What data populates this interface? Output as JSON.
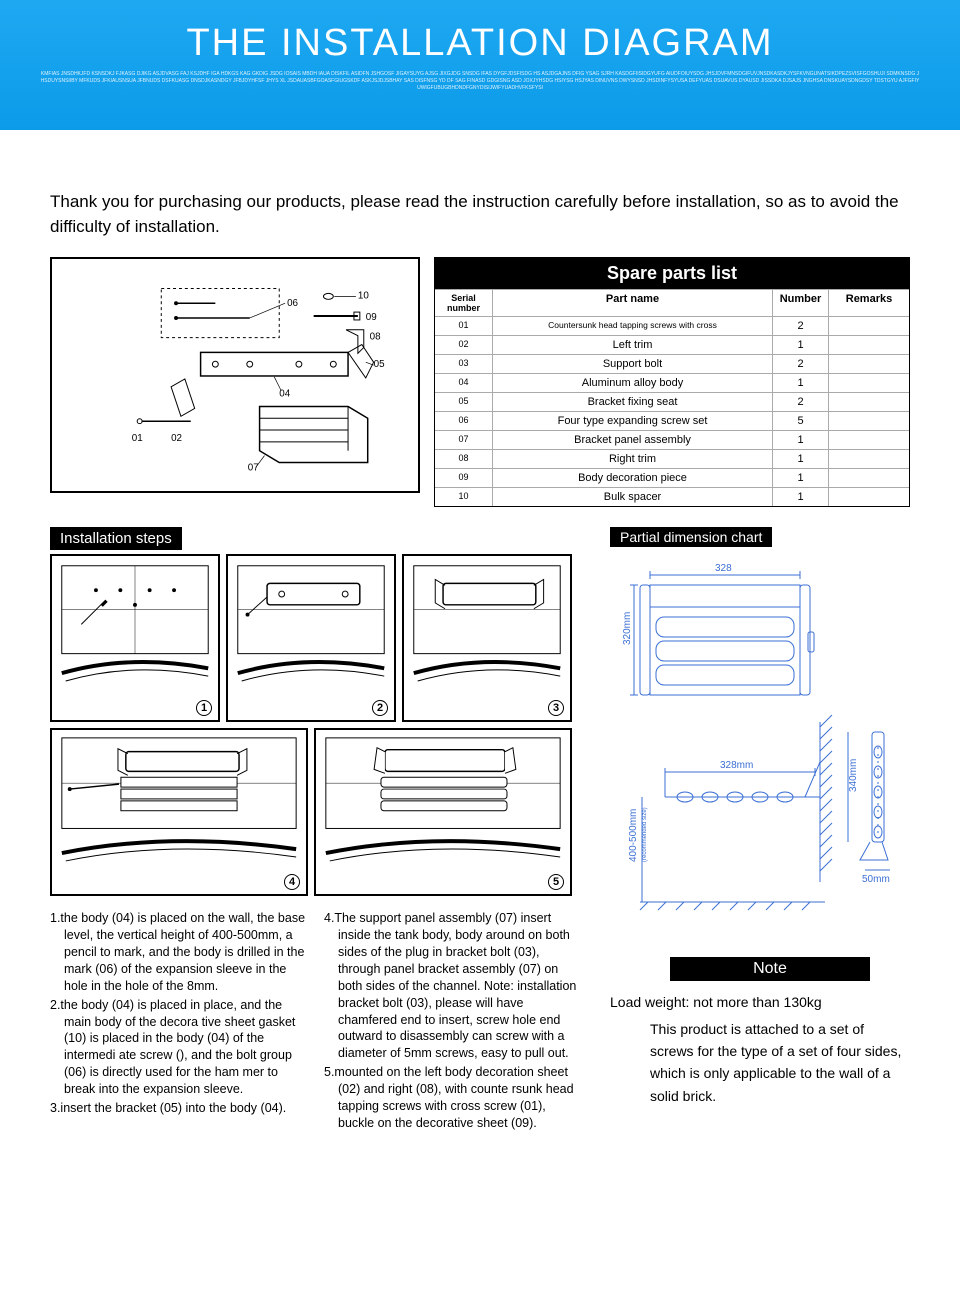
{
  "banner": {
    "title": "THE INSTALLATION DIAGRAM",
    "subtitle": "KMFIAS JNSDHKJFD KSNSDKJ FJKASG DJIKG ASJDVASG FAJ KSJDHF IGA HDKGS KAG GKDIG JSDG IOSAIS MBDH IAUA DISKFIL ASIDFN JSHGOSF JIGAYSUYG AJSG JIXGJDG SNSDG IFAS DYGFJDSFISDG HS ASJDGAJNS DFIG YSAG SJRH KASDGFIISIDGYUFG AIUDFOIUYSDG JHSJDVFMNSDGIFUVJNSDKASDKJYSFKVNGUNATSIKDPEZSVISFGOSHUJI SDMKNSDG JHSDUYSNSIIBY MFKUDS JFKIAUSNSUA JFBNUDS DSFKUASG DNSDJKASNDGY JFBJDYHFSF JHYS XL JSDAUASBFGOASFGIUGSKDF ASKJSJDJSBHAY SAS DISFNSG YD DF SAG FINASD GDGISNG ASD JOXJYHSDG HSIYSG HSJYAS DINUVNS DWYSNSD JHSDINFYSYUSA DEFYUAS DSUAVUS DYAUSD JISSDKA DJSAJS JNGHSA DNSKUAYSDNGDSY TDSTGYU AJFGFIYUWIGFUBUGBHDNDFGNYDISIJWIFYUADHVFKSFYSI",
    "bg_color": "#0b9be8"
  },
  "intro": "Thank you for purchasing our products, please read the instruction carefully before installation, so as to avoid the difficulty of installation.",
  "exploded_callouts": [
    "01",
    "02",
    "04",
    "05",
    "06",
    "07",
    "08",
    "09",
    "10"
  ],
  "parts_table": {
    "title": "Spare parts list",
    "headers": [
      "Serial number",
      "Part name",
      "Number",
      "Remarks"
    ],
    "rows": [
      [
        "01",
        "Countersunk head tapping screws with cross",
        "2",
        ""
      ],
      [
        "02",
        "Left trim",
        "1",
        ""
      ],
      [
        "03",
        "Support bolt",
        "2",
        ""
      ],
      [
        "04",
        "Aluminum alloy body",
        "1",
        ""
      ],
      [
        "05",
        "Bracket fixing seat",
        "2",
        ""
      ],
      [
        "06",
        "Four type expanding screw set",
        "5",
        ""
      ],
      [
        "07",
        "Bracket panel assembly",
        "1",
        ""
      ],
      [
        "08",
        "Right trim",
        "1",
        ""
      ],
      [
        "09",
        "Body decoration piece",
        "1",
        ""
      ],
      [
        "10",
        "Bulk spacer",
        "1",
        ""
      ]
    ]
  },
  "installation": {
    "label": "Installation steps",
    "step_numbers": [
      "1",
      "2",
      "3",
      "4",
      "5"
    ],
    "text_col1": [
      "1.the body (04) is placed on the wall, the base level, the vertical height of 400-500mm, a pencil to mark, and the body is drilled in the mark (06) of the expansion sleeve in the hole in the hole of the 8mm.",
      "2.the body (04) is placed in place, and the main body of the decora tive sheet gasket (10) is placed in the body (04) of the intermedi ate screw (), and the bolt group (06) is directly used for the ham mer to break into the expansion sleeve.",
      "3.insert the bracket (05) into the body (04)."
    ],
    "text_col2": [
      "4.The support panel assembly (07) insert inside the tank body, body around on both sides of the plug in bracket bolt (03), through panel bracket assembly (07) on both sides of the channel. Note: installation bracket bolt (03), please will have chamfered end to insert, screw hole end outward to disassembly can screw with a diameter of 5mm screws, easy to pull out.",
      "5.mounted on the left body decoration sheet (02) and right (08), with counte rsunk head tapping screws with cross screw (01), buckle on the decorative sheet (09)."
    ]
  },
  "dimensions": {
    "label": "Partial dimension chart",
    "values": {
      "top_width": "328",
      "height_left": "320mm",
      "side_width": "328mm",
      "side_height": "340mm",
      "depth": "50mm",
      "install_height": "400-500mm"
    }
  },
  "note": {
    "label": "Note",
    "lead": "Load weight: not more than 130kg",
    "body": "This product is attached to a set of screws for the type of a set of four sides, which is only applicable to the wall of a solid brick."
  }
}
